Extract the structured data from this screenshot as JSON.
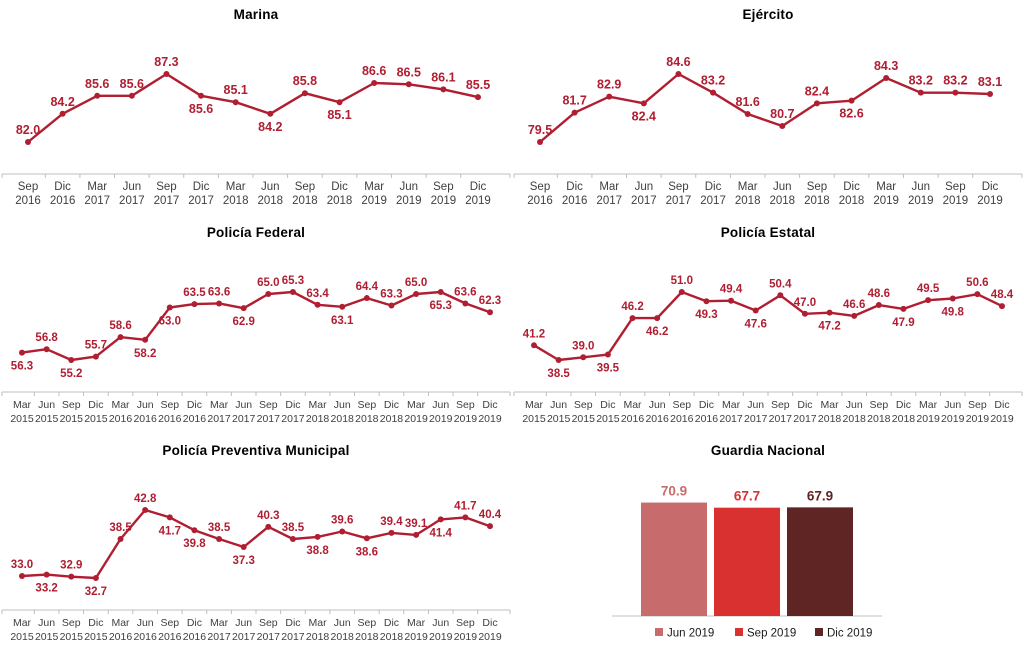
{
  "style": {
    "accent": "#b01e32",
    "axis_color": "#bfbfbf",
    "category_color": "#404040",
    "title_color": "#000000",
    "legend_text_color": "#1a1a1a",
    "background": "#ffffff"
  },
  "chart_data": [
    {
      "type": "line",
      "title": "Marina",
      "color": "#b01e32",
      "categories": [
        "Sep 2016",
        "Dic 2016",
        "Mar 2017",
        "Jun 2017",
        "Sep 2017",
        "Dic 2017",
        "Mar 2018",
        "Jun 2018",
        "Sep 2018",
        "Dic 2018",
        "Mar 2019",
        "Jun 2019",
        "Sep 2019",
        "Dic 2019"
      ],
      "values": [
        82.0,
        84.2,
        85.6,
        85.6,
        87.3,
        85.6,
        85.1,
        84.2,
        85.8,
        85.1,
        86.6,
        86.5,
        86.1,
        85.5
      ],
      "label_side": [
        "a",
        "a",
        "a",
        "a",
        "a",
        "b",
        "a",
        "b",
        "a",
        "b",
        "a",
        "a",
        "a",
        "a"
      ],
      "grid": false,
      "y_axis_visible": false
    },
    {
      "type": "line",
      "title": "Ejército",
      "color": "#b01e32",
      "categories": [
        "Sep 2016",
        "Dic 2016",
        "Mar 2017",
        "Jun 2017",
        "Sep 2017",
        "Dic 2017",
        "Mar 2018",
        "Jun 2018",
        "Sep 2018",
        "Dic 2018",
        "Mar 2019",
        "Jun 2019",
        "Sep 2019",
        "Dic 2019"
      ],
      "values": [
        79.5,
        81.7,
        82.9,
        82.4,
        84.6,
        83.2,
        81.6,
        80.7,
        82.4,
        82.6,
        84.3,
        83.2,
        83.2,
        83.1
      ],
      "label_side": [
        "a",
        "a",
        "a",
        "b",
        "a",
        "a",
        "a",
        "a",
        "a",
        "b",
        "a",
        "a",
        "a",
        "a"
      ],
      "grid": false,
      "y_axis_visible": false
    },
    {
      "type": "line",
      "title": "Policía Federal",
      "color": "#b01e32",
      "categories": [
        "Mar 2015",
        "Jun 2015",
        "Sep 2015",
        "Dic 2015",
        "Mar 2016",
        "Jun 2016",
        "Sep 2016",
        "Dic 2016",
        "Mar 2017",
        "Jun 2017",
        "Sep 2017",
        "Dic 2017",
        "Mar 2018",
        "Jun 2018",
        "Sep 2018",
        "Dic 2018",
        "Mar 2019",
        "Jun 2019",
        "Sep 2019",
        "Dic 2019"
      ],
      "values": [
        56.3,
        56.8,
        55.2,
        55.7,
        58.6,
        58.2,
        63.0,
        63.5,
        63.6,
        62.9,
        65.0,
        65.3,
        63.4,
        63.1,
        64.4,
        63.3,
        65.0,
        65.3,
        63.6,
        62.3
      ],
      "label_side": [
        "b",
        "a",
        "b",
        "a",
        "a",
        "b",
        "b",
        "a",
        "a",
        "b",
        "a",
        "a",
        "a",
        "b",
        "a",
        "a",
        "a",
        "b",
        "a",
        "a"
      ],
      "grid": false,
      "y_axis_visible": false
    },
    {
      "type": "line",
      "title": "Policía Estatal",
      "color": "#b01e32",
      "categories": [
        "Mar 2015",
        "Jun 2015",
        "Sep 2015",
        "Dic 2015",
        "Mar 2016",
        "Jun 2016",
        "Sep 2016",
        "Dic 2016",
        "Mar 2017",
        "Jun 2017",
        "Sep 2017",
        "Dic 2017",
        "Mar 2018",
        "Jun 2018",
        "Sep 2018",
        "Dic 2018",
        "Mar 2019",
        "Jun 2019",
        "Sep 2019",
        "Dic 2019"
      ],
      "values": [
        41.2,
        38.5,
        39.0,
        39.5,
        46.2,
        46.2,
        51.0,
        49.3,
        49.4,
        47.6,
        50.4,
        47.0,
        47.2,
        46.6,
        48.6,
        47.9,
        49.5,
        49.8,
        50.6,
        48.4
      ],
      "label_side": [
        "a",
        "b",
        "a",
        "b",
        "a",
        "b",
        "a",
        "b",
        "a",
        "b",
        "a",
        "a",
        "b",
        "a",
        "a",
        "b",
        "a",
        "b",
        "a",
        "a"
      ],
      "grid": false,
      "y_axis_visible": false
    },
    {
      "type": "line",
      "title": "Policía Preventiva Municipal",
      "color": "#b01e32",
      "categories": [
        "Mar 2015",
        "Jun 2015",
        "Sep 2015",
        "Dic 2015",
        "Mar 2016",
        "Jun 2016",
        "Sep 2016",
        "Dic 2016",
        "Mar 2017",
        "Jun 2017",
        "Sep 2017",
        "Dic 2017",
        "Mar 2018",
        "Jun 2018",
        "Sep 2018",
        "Dic 2018",
        "Mar 2019",
        "Jun 2019",
        "Sep 2019",
        "Dic 2019"
      ],
      "values": [
        33.0,
        33.2,
        32.9,
        32.7,
        38.5,
        42.8,
        41.7,
        39.8,
        38.5,
        37.3,
        40.3,
        38.5,
        38.8,
        39.6,
        38.6,
        39.4,
        39.1,
        41.4,
        41.7,
        40.4
      ],
      "label_side": [
        "a",
        "b",
        "a",
        "b",
        "a",
        "a",
        "b",
        "b",
        "a",
        "b",
        "a",
        "a",
        "b",
        "a",
        "b",
        "a",
        "a",
        "b",
        "a",
        "a"
      ],
      "grid": false,
      "y_axis_visible": false
    },
    {
      "type": "bar",
      "title": "Guardia Nacional",
      "categories": [
        "Jun 2019",
        "Sep 2019",
        "Dic 2019"
      ],
      "values": [
        70.9,
        67.7,
        67.9
      ],
      "bar_colors": [
        "#c86b6c",
        "#d93030",
        "#5f2424"
      ],
      "legend": [
        "Jun 2019",
        "Sep 2019",
        "Dic 2019"
      ],
      "legend_position": "bottom",
      "grid": false,
      "y_axis_visible": false
    }
  ]
}
